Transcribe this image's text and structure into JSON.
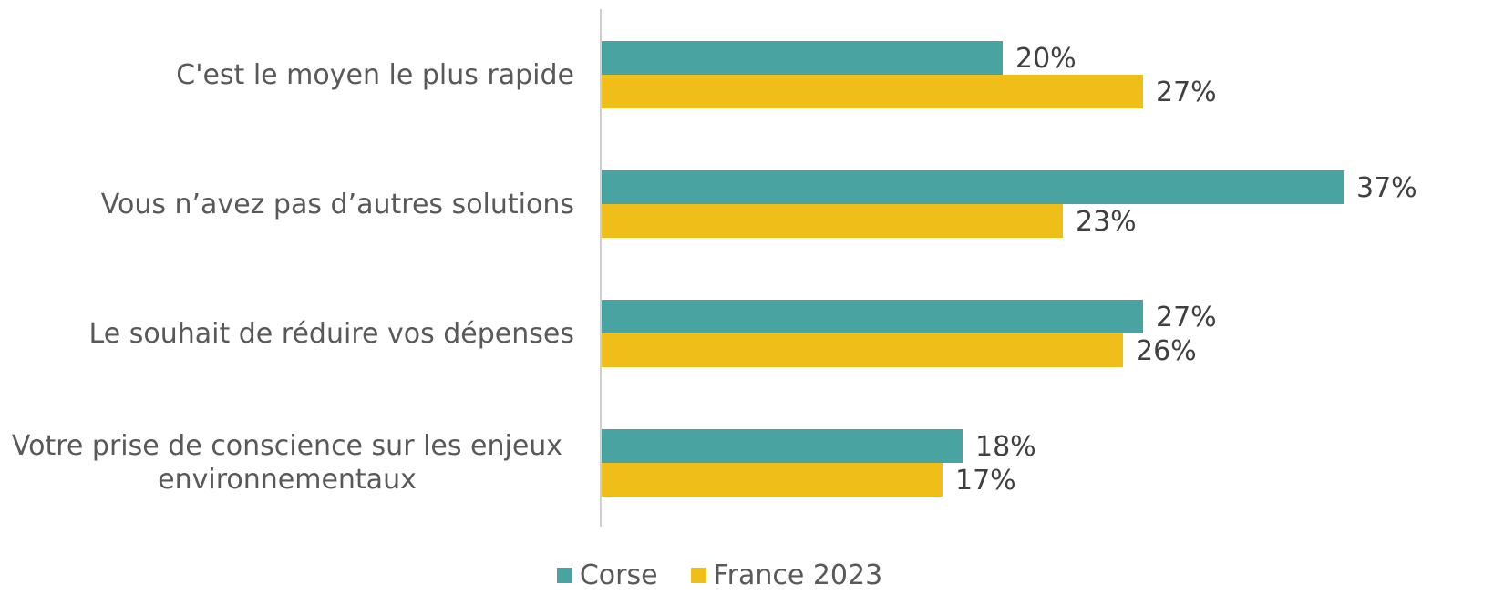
{
  "chart_data": {
    "type": "barh",
    "categories": [
      "C'est le moyen le plus rapide",
      "Vous n’avez pas d’autres solutions",
      "Le souhait de réduire vos dépenses",
      "Votre prise de conscience sur les enjeux environnementaux"
    ],
    "series": [
      {
        "name": "Corse",
        "color": "#49a3a0",
        "values": [
          20,
          37,
          27,
          18
        ],
        "value_labels": [
          "20%",
          "37%",
          "27%",
          "18%"
        ]
      },
      {
        "name": "France 2023",
        "color": "#f0be19",
        "values": [
          27,
          23,
          26,
          17
        ],
        "value_labels": [
          "27%",
          "23%",
          "26%",
          "17%"
        ]
      }
    ],
    "xlim": [
      0,
      40
    ],
    "legend": "bottom"
  }
}
